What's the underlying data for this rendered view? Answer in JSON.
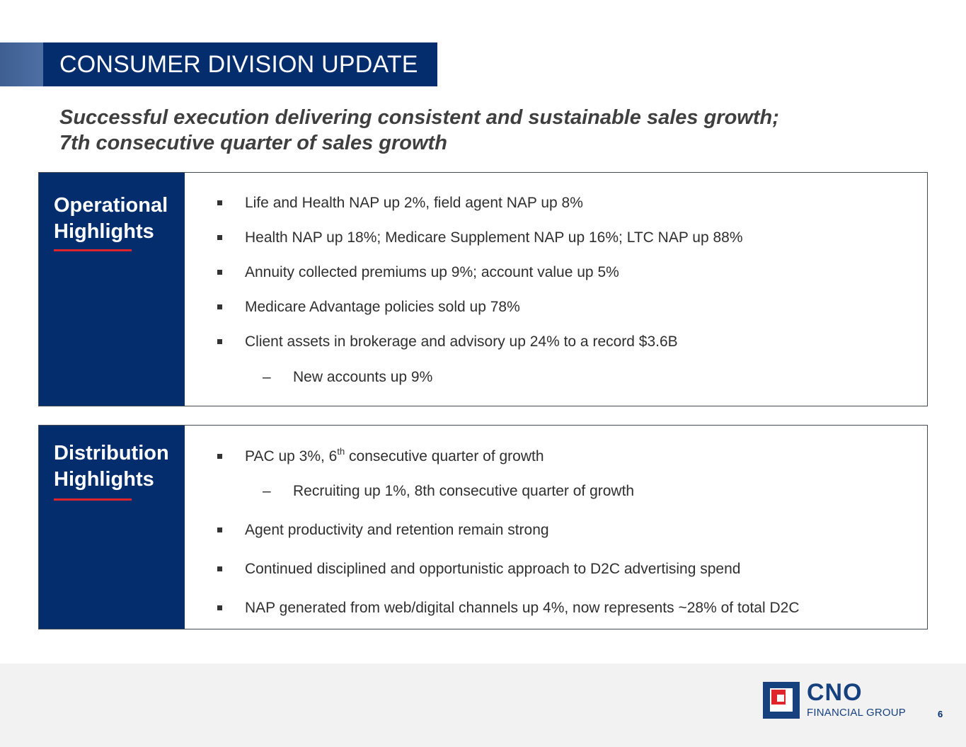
{
  "header": {
    "title": "CONSUMER DIVISION UPDATE"
  },
  "subtitle": {
    "line1": "Successful execution delivering consistent and sustainable sales growth;",
    "line2": "7th consecutive quarter of sales growth"
  },
  "operational": {
    "title_line1": "Operational",
    "title_line2": "Highlights",
    "bullets": [
      "Life and Health NAP up 2%, field agent NAP up 8%",
      "Health NAP up 18%; Medicare Supplement NAP up 16%; LTC NAP up 88%",
      "Annuity collected premiums up 9%; account value up 5%",
      "Medicare Advantage policies sold up 78%",
      "Client assets in brokerage and advisory up 24% to a record $3.6B"
    ],
    "sub_bullet": "New accounts up 9%",
    "sub_marker": "–"
  },
  "distribution": {
    "title_line1": "Distribution",
    "title_line2": "Highlights",
    "bullet1_pre": "PAC up 3%, 6",
    "bullet1_sup": "th",
    "bullet1_post": " consecutive quarter of growth",
    "sub_bullet": "Recruiting up 1%, 8th consecutive quarter of growth",
    "sub_marker": "–",
    "bullets": [
      "Agent productivity and retention remain strong",
      "Continued disciplined and opportunistic approach to D2C advertising spend",
      "NAP generated from web/digital channels up 4%, now represents ~28% of total D2C"
    ]
  },
  "footer": {
    "logo_name": "CNO",
    "logo_sub": "FINANCIAL GROUP",
    "page_number": "6"
  },
  "colors": {
    "navy": "#042d6e",
    "accent_red": "#e0242c",
    "footer_bg": "#f2f2f2"
  }
}
